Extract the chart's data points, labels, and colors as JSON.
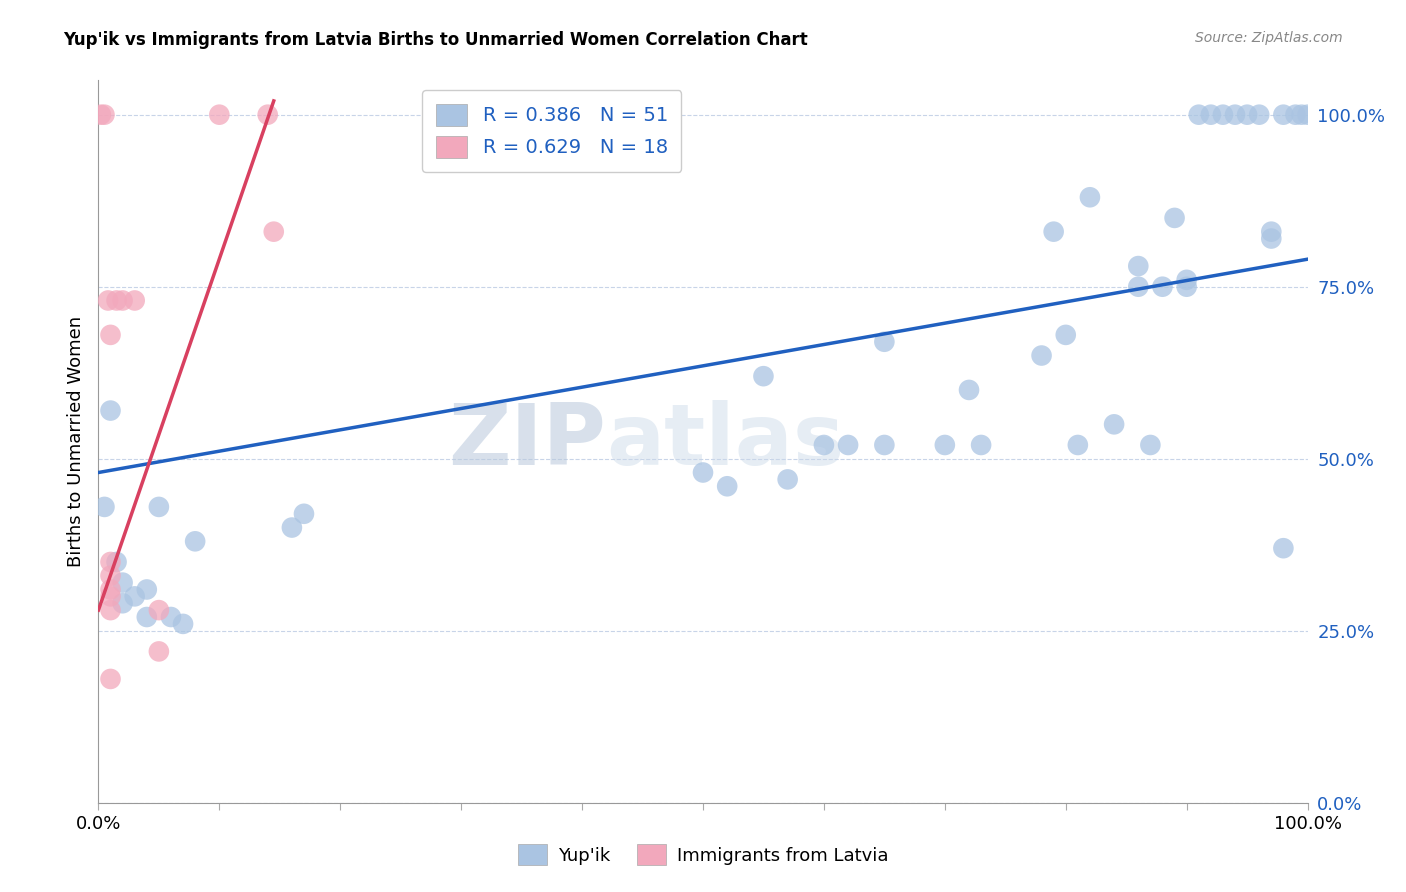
{
  "title": "Yup'ik vs Immigrants from Latvia Births to Unmarried Women Correlation Chart",
  "source": "Source: ZipAtlas.com",
  "ylabel": "Births to Unmarried Women",
  "background_color": "#ffffff",
  "watermark_zip": "ZIP",
  "watermark_atlas": "atlas",
  "yup_color": "#aac4e2",
  "latvia_color": "#f2a8bc",
  "line_blue": "#2060c0",
  "line_pink": "#d84060",
  "tick_color": "#2060c0",
  "xmin": 0.0,
  "xmax": 1.0,
  "ymin": 0.0,
  "ymax": 1.05,
  "ytick_values": [
    0.0,
    0.25,
    0.5,
    0.75,
    1.0
  ],
  "xtick_values": [
    0.0,
    0.1,
    0.2,
    0.3,
    0.4,
    0.5,
    0.6,
    0.7,
    0.8,
    0.9,
    1.0
  ],
  "yup_x": [
    0.005,
    0.01,
    0.015,
    0.02,
    0.02,
    0.03,
    0.04,
    0.04,
    0.05,
    0.06,
    0.07,
    0.08,
    0.16,
    0.17,
    0.5,
    0.52,
    0.55,
    0.57,
    0.6,
    0.62,
    0.65,
    0.65,
    0.7,
    0.72,
    0.73,
    0.78,
    0.8,
    0.81,
    0.84,
    0.86,
    0.87,
    0.88,
    0.89,
    0.9,
    0.91,
    0.92,
    0.93,
    0.94,
    0.95,
    0.96,
    0.97,
    0.98,
    0.98,
    0.99,
    0.995,
    1.0,
    0.79,
    0.82,
    0.86,
    0.9,
    0.97
  ],
  "yup_y": [
    0.43,
    0.57,
    0.35,
    0.32,
    0.29,
    0.3,
    0.31,
    0.27,
    0.43,
    0.27,
    0.26,
    0.38,
    0.4,
    0.42,
    0.48,
    0.46,
    0.62,
    0.47,
    0.52,
    0.52,
    0.67,
    0.52,
    0.52,
    0.6,
    0.52,
    0.65,
    0.68,
    0.52,
    0.55,
    0.78,
    0.52,
    0.75,
    0.85,
    0.75,
    1.0,
    1.0,
    1.0,
    1.0,
    1.0,
    1.0,
    0.82,
    1.0,
    0.37,
    1.0,
    1.0,
    1.0,
    0.83,
    0.88,
    0.75,
    0.76,
    0.83
  ],
  "latvia_x": [
    0.002,
    0.005,
    0.008,
    0.01,
    0.01,
    0.01,
    0.01,
    0.01,
    0.01,
    0.01,
    0.015,
    0.02,
    0.03,
    0.05,
    0.05,
    0.1,
    0.14,
    0.145
  ],
  "latvia_y": [
    1.0,
    1.0,
    0.73,
    0.68,
    0.35,
    0.33,
    0.31,
    0.3,
    0.28,
    0.18,
    0.73,
    0.73,
    0.73,
    0.28,
    0.22,
    1.0,
    1.0,
    0.83
  ],
  "blue_line_x": [
    0.0,
    1.0
  ],
  "blue_line_y": [
    0.48,
    0.79
  ],
  "pink_line_x": [
    0.0,
    0.145
  ],
  "pink_line_y": [
    0.28,
    1.02
  ],
  "legend_r1": "R = 0.386",
  "legend_n1": "N = 51",
  "legend_r2": "R = 0.629",
  "legend_n2": "N = 18"
}
